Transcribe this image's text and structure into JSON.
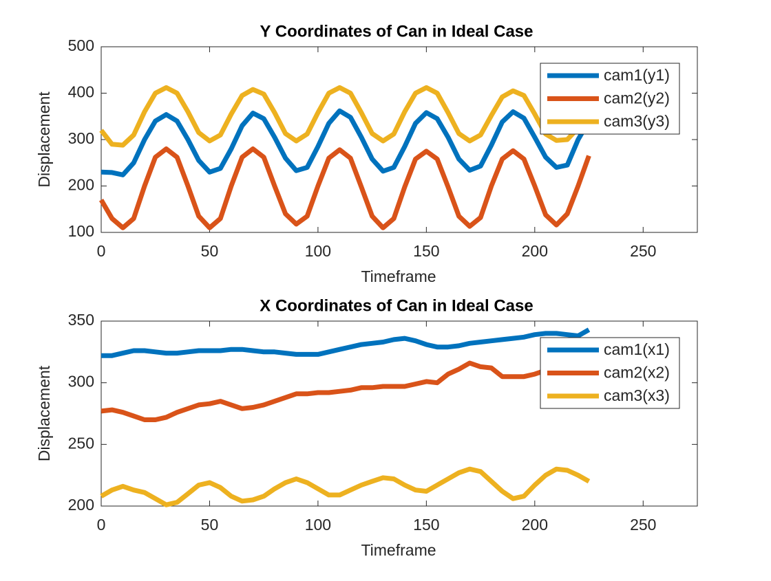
{
  "chart_data": [
    {
      "type": "line",
      "title": "Y Coordinates of Can in Ideal Case",
      "x_label": "Timeframe",
      "y_label": "Displacement",
      "x": [
        0,
        5,
        10,
        15,
        20,
        25,
        30,
        35,
        40,
        45,
        50,
        55,
        60,
        65,
        70,
        75,
        80,
        85,
        90,
        95,
        100,
        105,
        110,
        115,
        120,
        125,
        130,
        135,
        140,
        145,
        150,
        155,
        160,
        165,
        170,
        175,
        180,
        185,
        190,
        195,
        200,
        205,
        210,
        215,
        220,
        225
      ],
      "series": [
        {
          "name": "cam1(y1)",
          "color": "#0072BD",
          "values": [
            230,
            229,
            224,
            250,
            300,
            340,
            354,
            340,
            300,
            255,
            230,
            238,
            280,
            330,
            357,
            345,
            305,
            260,
            233,
            240,
            285,
            335,
            362,
            348,
            305,
            258,
            232,
            240,
            285,
            335,
            358,
            345,
            305,
            258,
            234,
            243,
            288,
            338,
            360,
            346,
            305,
            262,
            240,
            245,
            300,
            340
          ]
        },
        {
          "name": "cam2(y2)",
          "color": "#D95319",
          "values": [
            170,
            130,
            110,
            130,
            200,
            262,
            280,
            262,
            200,
            135,
            110,
            130,
            200,
            262,
            280,
            262,
            200,
            140,
            118,
            135,
            200,
            260,
            278,
            260,
            198,
            135,
            110,
            130,
            198,
            258,
            275,
            258,
            198,
            135,
            113,
            132,
            200,
            258,
            276,
            258,
            200,
            138,
            116,
            140,
            200,
            265
          ]
        },
        {
          "name": "cam3(y3)",
          "color": "#EDB120",
          "values": [
            320,
            290,
            288,
            310,
            360,
            400,
            412,
            400,
            360,
            315,
            297,
            310,
            355,
            395,
            408,
            398,
            358,
            313,
            297,
            312,
            358,
            400,
            412,
            400,
            358,
            313,
            297,
            312,
            360,
            400,
            412,
            400,
            358,
            313,
            297,
            310,
            352,
            392,
            405,
            395,
            355,
            312,
            298,
            300,
            325,
            null
          ]
        }
      ],
      "xlim": [
        0,
        275
      ],
      "ylim": [
        100,
        500
      ],
      "xticks": [
        0,
        50,
        100,
        150,
        200,
        250
      ],
      "yticks": [
        100,
        200,
        300,
        400,
        500
      ],
      "legend": "upper right"
    },
    {
      "type": "line",
      "title": "X Coordinates of Can in Ideal Case",
      "x_label": "Timeframe",
      "y_label": "Displacement",
      "x": [
        0,
        5,
        10,
        15,
        20,
        25,
        30,
        35,
        40,
        45,
        50,
        55,
        60,
        65,
        70,
        75,
        80,
        85,
        90,
        95,
        100,
        105,
        110,
        115,
        120,
        125,
        130,
        135,
        140,
        145,
        150,
        155,
        160,
        165,
        170,
        175,
        180,
        185,
        190,
        195,
        200,
        205,
        210,
        215,
        220,
        225
      ],
      "series": [
        {
          "name": "cam1(x1)",
          "color": "#0072BD",
          "values": [
            322,
            322,
            324,
            326,
            326,
            325,
            324,
            324,
            325,
            326,
            326,
            326,
            327,
            327,
            326,
            325,
            325,
            324,
            323,
            323,
            323,
            325,
            327,
            329,
            331,
            332,
            333,
            335,
            336,
            334,
            331,
            329,
            329,
            330,
            332,
            333,
            334,
            335,
            336,
            337,
            339,
            340,
            340,
            339,
            338,
            343
          ]
        },
        {
          "name": "cam2(x2)",
          "color": "#D95319",
          "values": [
            277,
            278,
            276,
            273,
            270,
            270,
            272,
            276,
            279,
            282,
            283,
            285,
            282,
            279,
            280,
            282,
            285,
            288,
            291,
            291,
            292,
            292,
            293,
            294,
            296,
            296,
            297,
            297,
            297,
            299,
            301,
            300,
            307,
            311,
            316,
            313,
            312,
            305,
            305,
            305,
            307,
            310,
            310,
            310,
            310,
            310
          ]
        },
        {
          "name": "cam3(x3)",
          "color": "#EDB120",
          "values": [
            208,
            213,
            216,
            213,
            211,
            206,
            201,
            203,
            210,
            217,
            219,
            215,
            208,
            204,
            205,
            208,
            214,
            219,
            222,
            219,
            214,
            209,
            209,
            213,
            217,
            220,
            223,
            222,
            217,
            213,
            212,
            217,
            222,
            227,
            230,
            228,
            220,
            212,
            206,
            208,
            217,
            225,
            230,
            229,
            225,
            220
          ]
        }
      ],
      "xlim": [
        0,
        275
      ],
      "ylim": [
        200,
        350
      ],
      "xticks": [
        0,
        50,
        100,
        150,
        200,
        250
      ],
      "yticks": [
        200,
        250,
        300,
        350
      ],
      "legend": "upper right"
    }
  ]
}
